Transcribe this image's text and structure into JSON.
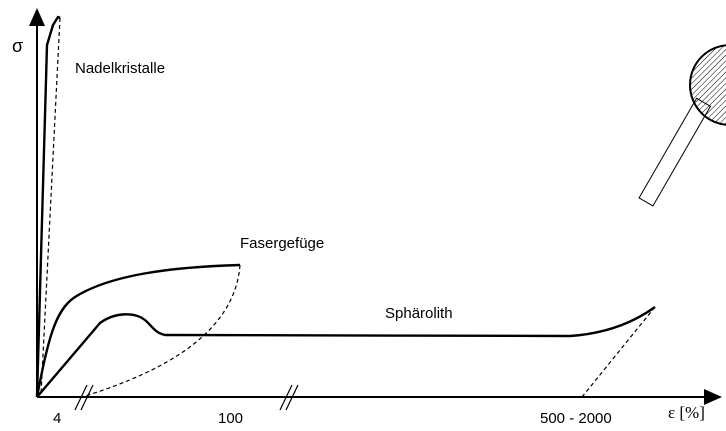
{
  "axes": {
    "y_label": "σ",
    "x_label": "ε [%]",
    "x_labels": [
      "4",
      "100",
      "500 - 2000"
    ]
  },
  "curves": [
    {
      "label": "Nadelkristalle"
    },
    {
      "label": "Fasergefüge"
    },
    {
      "label": "Sphärolith"
    }
  ]
}
